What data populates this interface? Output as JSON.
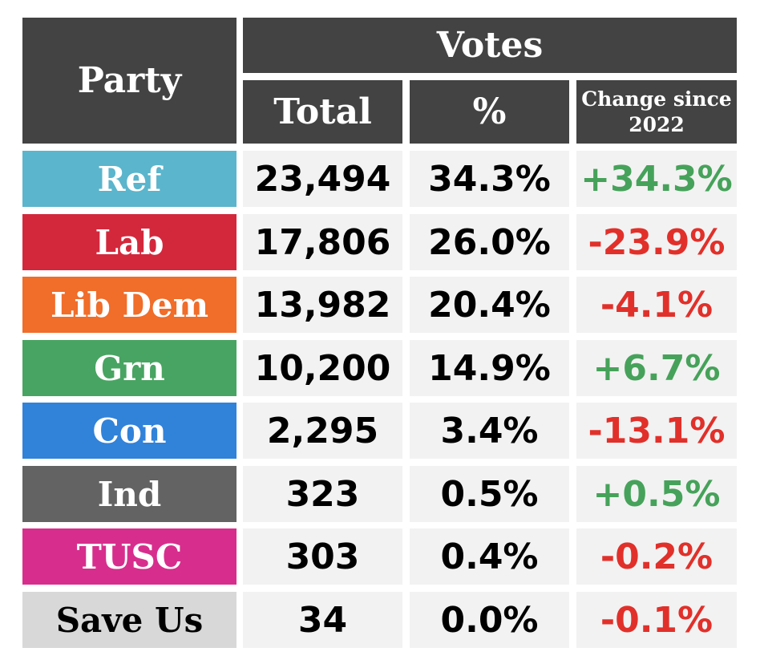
{
  "header": {
    "party": "Party",
    "votes": "Votes",
    "total": "Total",
    "percent": "%",
    "change_line1": "Change since",
    "change_line2": "2022"
  },
  "rows": [
    {
      "party": "Ref",
      "total": "23,494",
      "percent": "34.3%",
      "change": "+34.3%",
      "color": "#5bb5cc",
      "direction": "up"
    },
    {
      "party": "Lab",
      "total": "17,806",
      "percent": "26.0%",
      "change": "-23.9%",
      "color": "#d3283c",
      "direction": "down"
    },
    {
      "party": "Lib Dem",
      "total": "13,982",
      "percent": "20.4%",
      "change": "-4.1%",
      "color": "#f06d2a",
      "direction": "down"
    },
    {
      "party": "Grn",
      "total": "10,200",
      "percent": "14.9%",
      "change": "+6.7%",
      "color": "#48a462",
      "direction": "up"
    },
    {
      "party": "Con",
      "total": "2,295",
      "percent": "3.4%",
      "change": "-13.1%",
      "color": "#3182d9",
      "direction": "down"
    },
    {
      "party": "Ind",
      "total": "323",
      "percent": "0.5%",
      "change": "+0.5%",
      "color": "#636363",
      "direction": "up"
    },
    {
      "party": "TUSC",
      "total": "303",
      "percent": "0.4%",
      "change": "-0.2%",
      "color": "#d72e8d",
      "direction": "down"
    },
    {
      "party": "Save Us",
      "total": "34",
      "percent": "0.0%",
      "change": "-0.1%",
      "color": "#d8d8d8",
      "direction": "down"
    }
  ],
  "colors": {
    "header_bg": "#434343",
    "cell_bg": "#f2f2f2",
    "positive": "#46a25a",
    "negative": "#e1302a"
  }
}
